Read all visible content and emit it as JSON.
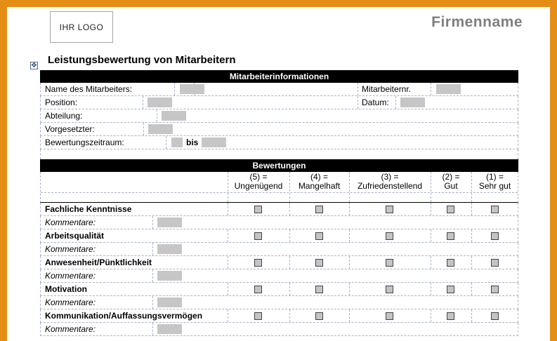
{
  "header": {
    "logo_text": "IHR LOGO",
    "company_name": "Firmenname",
    "title": "Leistungsbewertung von Mitarbeitern",
    "move_handle_glyph": "✥"
  },
  "employee_section": {
    "title": "Mitarbeiterinformationen",
    "fields": {
      "name": "Name des Mitarbeiters:",
      "employee_no": "Mitarbeiternr.",
      "position": "Position:",
      "date": "Datum:",
      "department": "Abteilung:",
      "supervisor": "Vorgesetzter:",
      "period": "Bewertungszeitraum:",
      "period_to": "bis"
    }
  },
  "ratings_section": {
    "title": "Bewertungen",
    "scale": [
      {
        "line1": "(5) =",
        "line2": "Ungenügend"
      },
      {
        "line1": "(4) =",
        "line2": "Mangelhaft"
      },
      {
        "line1": "(3) =",
        "line2": "Zufriedenstellend"
      },
      {
        "line1": "(2) =",
        "line2": "Gut"
      },
      {
        "line1": "(1) =",
        "line2": "Sehr gut"
      }
    ],
    "comment_label": "Kommentare:",
    "criteria": [
      "Fachliche Kenntnisse",
      "Arbeitsqualität",
      "Anwesenheit/Pünktlichkeit",
      "Motivation",
      "Kommunikation/Auffassungsvermögen"
    ]
  }
}
